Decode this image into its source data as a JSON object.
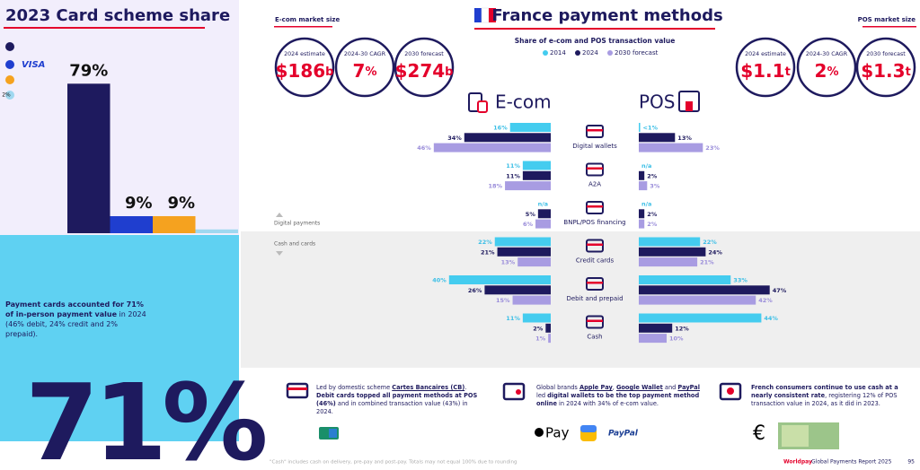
{
  "header": {
    "ecom_label": "E-com market size",
    "pos_label": "POS market size"
  },
  "market_size": {
    "ecom": [
      {
        "label": "2024 estimate",
        "value": "$186",
        "unit": "b"
      },
      {
        "label": "2024-30 CAGR",
        "value": "7",
        "unit": "%"
      },
      {
        "label": "2030 forecast",
        "value": "$274",
        "unit": "b"
      }
    ],
    "pos": [
      {
        "label": "2024 estimate",
        "value": "$1.1",
        "unit": "t"
      },
      {
        "label": "2024-30 CAGR",
        "value": "2",
        "unit": "%"
      },
      {
        "label": "2030 forecast",
        "value": "$1.3",
        "unit": "t"
      }
    ]
  },
  "chart_data": [
    {
      "type": "bar",
      "title": "2023 Card scheme share",
      "categories": [
        null,
        "VISA",
        null,
        null
      ],
      "values": [
        79,
        9,
        9,
        2
      ],
      "value_labels": [
        "79%",
        "9%",
        "9%",
        "2%"
      ],
      "colors": [
        "#1e1a5e",
        "#1f3ecf",
        "#f5a21f",
        "#9fd8f0"
      ]
    },
    {
      "type": "hbar-mirror",
      "title": "France payment methods",
      "subtitle": "Share of e-com and POS transaction value",
      "categories": [
        "Digital wallets",
        "A2A",
        "BNPL/POS financing",
        "Credit cards",
        "Debit and prepaid",
        "Cash"
      ],
      "groups": [
        "Digital payments",
        "Cash and cards"
      ],
      "legend": [
        {
          "name": "2014",
          "color": "#44ccef"
        },
        {
          "name": "2024",
          "color": "#1e1a5e"
        },
        {
          "name": "2030 forecast",
          "color": "#a89ce2"
        }
      ],
      "panels": [
        {
          "title": "E-com",
          "series": [
            {
              "values": [
                16,
                11,
                null,
                22,
                40,
                11
              ],
              "value_labels": [
                "16%",
                "11%",
                "n/a",
                "22%",
                "40%",
                "11%"
              ]
            },
            {
              "values": [
                34,
                11,
                5,
                21,
                26,
                2
              ],
              "value_labels": [
                "34%",
                "11%",
                "5%",
                "21%",
                "26%",
                "2%"
              ]
            },
            {
              "values": [
                46,
                18,
                6,
                13,
                15,
                1
              ],
              "value_labels": [
                "46%",
                "18%",
                "6%",
                "13%",
                "15%",
                "1%"
              ]
            }
          ]
        },
        {
          "title": "POS",
          "series": [
            {
              "values": [
                0.5,
                null,
                null,
                22,
                33,
                44
              ],
              "value_labels": [
                "<1%",
                "n/a",
                "n/a",
                "22%",
                "33%",
                "44%"
              ]
            },
            {
              "values": [
                13,
                2,
                2,
                24,
                47,
                12
              ],
              "value_labels": [
                "13%",
                "2%",
                "2%",
                "24%",
                "47%",
                "12%"
              ]
            },
            {
              "values": [
                23,
                3,
                2,
                21,
                42,
                10
              ],
              "value_labels": [
                "23%",
                "3%",
                "2%",
                "21%",
                "42%",
                "10%"
              ]
            }
          ]
        }
      ]
    }
  ],
  "left_panel": {
    "statement_bold": "Payment cards accounted for 71% of in-person payment value",
    "statement": " in 2024 (46% debit, 24% credit and 2% prepaid).",
    "big_stat": "71%"
  },
  "notes": [
    {
      "parts": [
        {
          "text": "Led by domestic scheme "
        },
        {
          "text": "Cartes Bancaires (CB)",
          "bold": true,
          "underline": true
        },
        {
          "text": ". "
        },
        {
          "text": "Debit cards topped all payment methods at POS (46%)",
          "bold": true
        },
        {
          "text": " and in combined transaction value (43%) in 2024."
        }
      ]
    },
    {
      "parts": [
        {
          "text": "Global brands "
        },
        {
          "text": "Apple Pay",
          "bold": true,
          "underline": true
        },
        {
          "text": ", "
        },
        {
          "text": "Google Wallet",
          "bold": true,
          "underline": true
        },
        {
          "text": " and "
        },
        {
          "text": "PayPal",
          "bold": true,
          "underline": true
        },
        {
          "text": " led "
        },
        {
          "text": "digital wallets to be the top payment method online",
          "bold": true
        },
        {
          "text": " in 2024 with 34% of e-com value."
        }
      ]
    },
    {
      "parts": [
        {
          "text": "French consumers continue to use cash at a nearly consistent rate",
          "bold": true
        },
        {
          "text": ", registering 12% of POS transaction value in 2024, as it did in 2023."
        }
      ]
    }
  ],
  "logos": {
    "apple_pay": "Pay",
    "paypal": "PayPal",
    "euro": "€"
  },
  "footer": {
    "footnote": "\"Cash\" includes cash on delivery, pre-pay and post-pay. Totals may not equal 100% due to rounding",
    "brand": "Worldpay",
    "report": "Global Payments Report 2025",
    "page": "95"
  }
}
